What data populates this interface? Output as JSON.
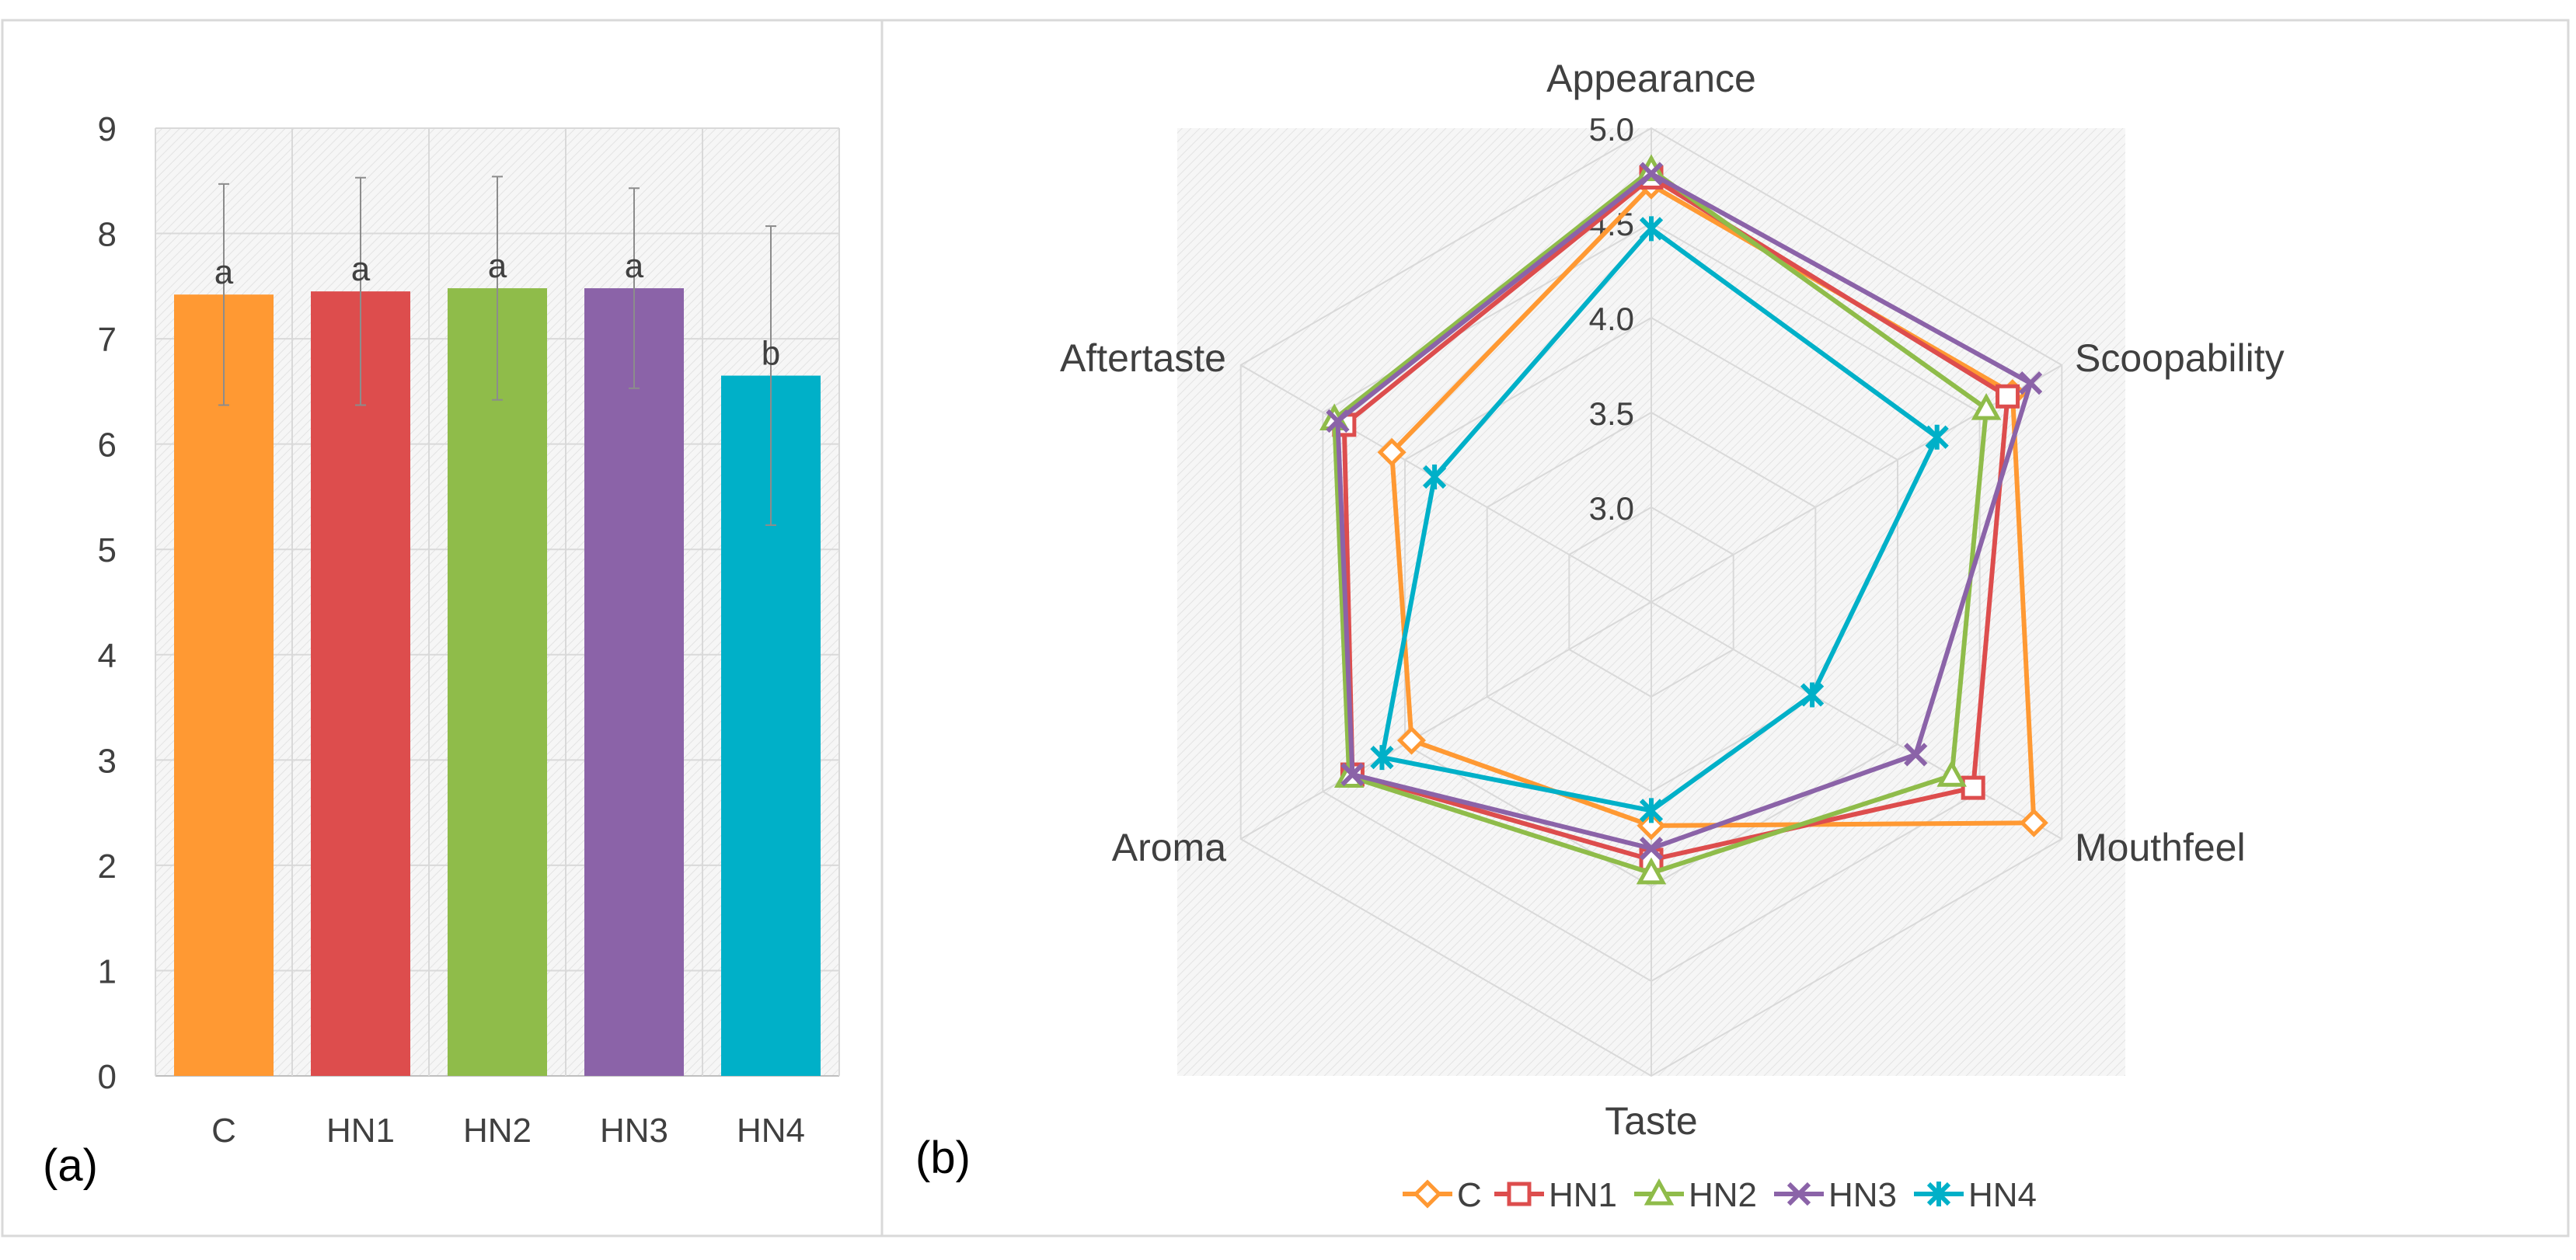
{
  "panel_a": {
    "label": "(a)",
    "chart_data": {
      "type": "bar",
      "categories": [
        "C",
        "HN1",
        "HN2",
        "HN3",
        "HN4"
      ],
      "values": [
        7.42,
        7.45,
        7.48,
        7.48,
        6.65
      ],
      "error": [
        1.05,
        1.08,
        1.06,
        0.95,
        1.42
      ],
      "letters": [
        "a",
        "a",
        "a",
        "a",
        "b"
      ],
      "colors": [
        "#ff9933",
        "#dd4d4d",
        "#8fbc4a",
        "#8b63a8",
        "#00b0c8"
      ],
      "ylim": [
        0,
        9
      ],
      "yticks": [
        "0",
        "1",
        "2",
        "3",
        "4",
        "5",
        "6",
        "7",
        "8",
        "9"
      ],
      "title": "",
      "xlabel": "",
      "ylabel": "",
      "grid": true
    }
  },
  "panel_b": {
    "label": "(b)",
    "chart_data": {
      "type": "radar",
      "axes": [
        "Appearance",
        "Scoopability",
        "Mouthfeel",
        "Taste",
        "Aroma",
        "Aftertaste"
      ],
      "rlim": [
        2.5,
        5.0
      ],
      "rticks": [
        "3.0",
        "3.5",
        "4.0",
        "4.5",
        "5.0"
      ],
      "legend_position": "bottom",
      "series": [
        {
          "name": "C",
          "color": "#ff9933",
          "marker": "diamond",
          "values": [
            4.7,
            4.7,
            4.83,
            3.68,
            3.96,
            4.08
          ]
        },
        {
          "name": "HN1",
          "color": "#dd4d4d",
          "marker": "square",
          "values": [
            4.74,
            4.67,
            4.46,
            3.86,
            4.32,
            4.37
          ]
        },
        {
          "name": "HN2",
          "color": "#8fbc4a",
          "marker": "triangle",
          "values": [
            4.78,
            4.54,
            4.33,
            3.93,
            4.34,
            4.43
          ]
        },
        {
          "name": "HN3",
          "color": "#8b63a8",
          "marker": "x",
          "values": [
            4.76,
            4.81,
            4.11,
            3.8,
            4.32,
            4.41
          ]
        },
        {
          "name": "HN4",
          "color": "#00b0c8",
          "marker": "star",
          "values": [
            4.47,
            4.24,
            3.48,
            3.6,
            4.14,
            3.82
          ]
        }
      ]
    }
  }
}
